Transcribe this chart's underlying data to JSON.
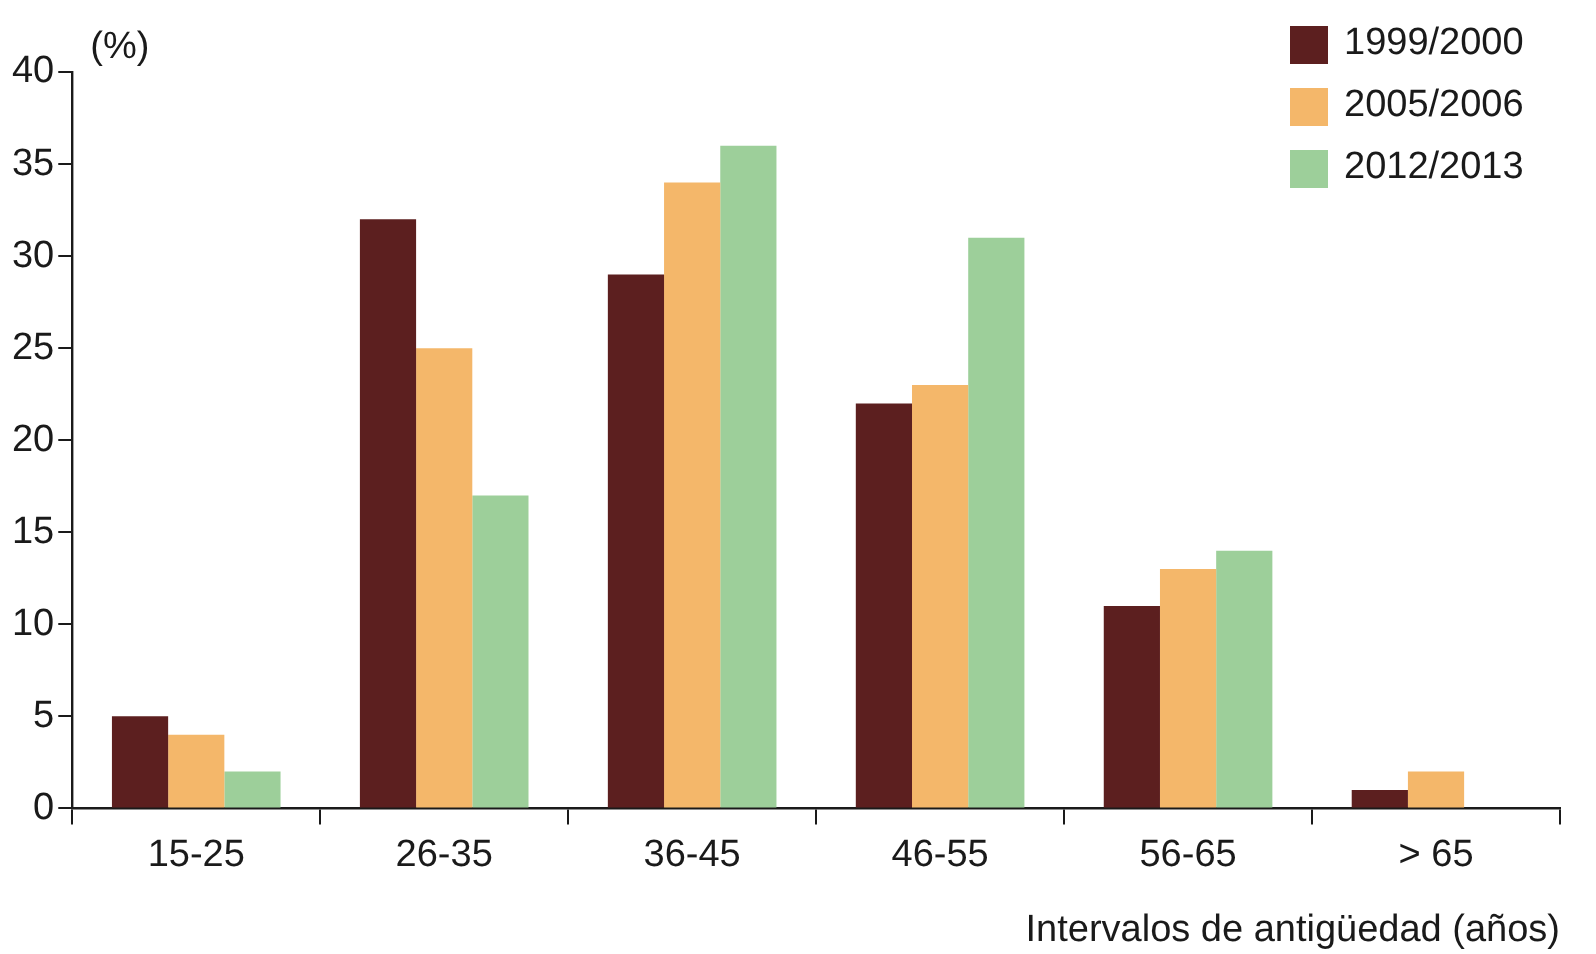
{
  "chart_data": {
    "type": "bar",
    "ylabel": "(%)",
    "xlabel": "Intervalos de antigüedad (años)",
    "categories": [
      "15-25",
      "26-35",
      "36-45",
      "46-55",
      "56-65",
      "> 65"
    ],
    "series": [
      {
        "name": "1999/2000",
        "color": "#5c1f1f",
        "values": [
          5,
          32,
          29,
          22,
          11,
          1
        ]
      },
      {
        "name": "2005/2006",
        "color": "#f4b76a",
        "values": [
          4,
          25,
          34,
          23,
          13,
          2
        ]
      },
      {
        "name": "2012/2013",
        "color": "#9dcf9a",
        "values": [
          2,
          17,
          36,
          31,
          14,
          null
        ]
      }
    ],
    "ylim": [
      0,
      40
    ],
    "yticks": [
      0,
      5,
      10,
      15,
      20,
      25,
      30,
      35,
      40
    ],
    "grid": false,
    "legend": "top right"
  }
}
